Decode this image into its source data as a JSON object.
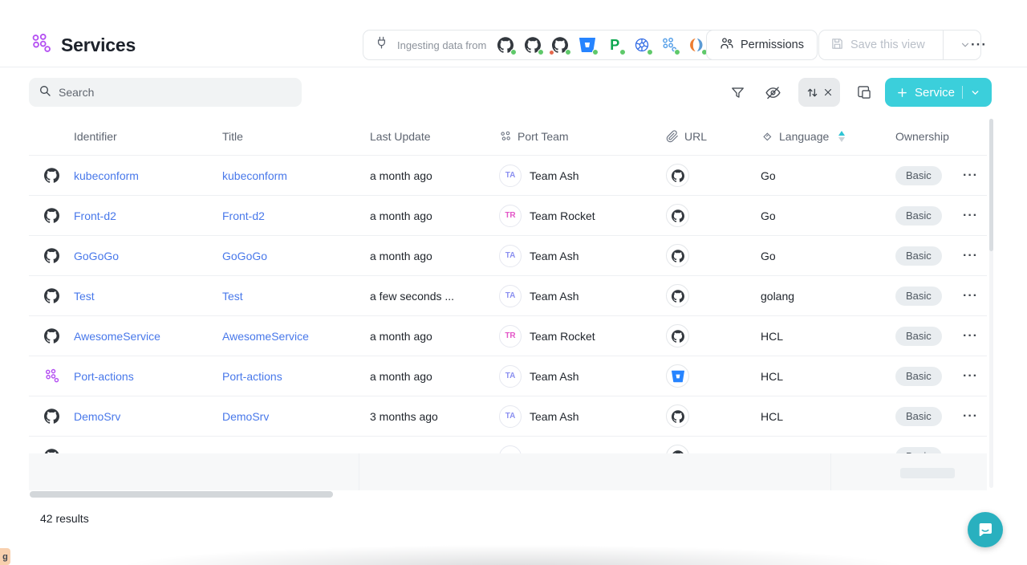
{
  "page": {
    "title": "Services",
    "results_count": "42 results",
    "edge_tag": "g"
  },
  "colors": {
    "accent_teal": "#3bcfdb",
    "link_blue": "#4878ea",
    "status_green": "#5fc96a",
    "alert_red": "#e6694d",
    "avatar_team_ash": "#8b90f0",
    "avatar_team_rocket": "#e357c8"
  },
  "header": {
    "ingest": {
      "label": "Ingesting data from",
      "sources": [
        {
          "icon": "github"
        },
        {
          "icon": "github"
        },
        {
          "icon": "github",
          "alert": true
        },
        {
          "icon": "bitbucket"
        },
        {
          "icon": "pagerduty"
        },
        {
          "icon": "kubernetes"
        },
        {
          "icon": "port-blueprint"
        },
        {
          "icon": "duotone-service"
        },
        {
          "icon": "api"
        }
      ]
    },
    "permissions_label": "Permissions",
    "save_view_label": "Save this view",
    "more_label": "···"
  },
  "toolbar": {
    "search_placeholder": "Search",
    "add_button_label": "Service"
  },
  "table": {
    "columns": [
      "Identifier",
      "Title",
      "Last Update",
      "Port Team",
      "URL",
      "Language",
      "Ownership"
    ],
    "row_menu_label": "···",
    "rows": [
      {
        "icon": "github",
        "identifier": "kubeconform",
        "title": "kubeconform",
        "last_update": "a month ago",
        "team_initials": "TA",
        "team": "Team Ash",
        "team_color": "#8b90f0",
        "url_icon": "github",
        "language": "Go",
        "ownership": "Basic"
      },
      {
        "icon": "github",
        "identifier": "Front-d2",
        "title": "Front-d2",
        "last_update": "a month ago",
        "team_initials": "TR",
        "team": "Team Rocket",
        "team_color": "#e357c8",
        "url_icon": "github",
        "language": "Go",
        "ownership": "Basic"
      },
      {
        "icon": "github",
        "identifier": "GoGoGo",
        "title": "GoGoGo",
        "last_update": "a month ago",
        "team_initials": "TA",
        "team": "Team Ash",
        "team_color": "#8b90f0",
        "url_icon": "github",
        "language": "Go",
        "ownership": "Basic"
      },
      {
        "icon": "github",
        "identifier": "Test",
        "title": "Test",
        "last_update": "a few seconds ...",
        "team_initials": "TA",
        "team": "Team Ash",
        "team_color": "#8b90f0",
        "url_icon": "github",
        "language": "golang",
        "ownership": "Basic"
      },
      {
        "icon": "github",
        "identifier": "AwesomeService",
        "title": "AwesomeService",
        "last_update": "a month ago",
        "team_initials": "TR",
        "team": "Team Rocket",
        "team_color": "#e357c8",
        "url_icon": "github",
        "language": "HCL",
        "ownership": "Basic"
      },
      {
        "icon": "microservices",
        "identifier": "Port-actions",
        "title": "Port-actions",
        "last_update": "a month ago",
        "team_initials": "TA",
        "team": "Team Ash",
        "team_color": "#8b90f0",
        "url_icon": "bitbucket",
        "language": "HCL",
        "ownership": "Basic"
      },
      {
        "icon": "github",
        "identifier": "DemoSrv",
        "title": "DemoSrv",
        "last_update": "3 months ago",
        "team_initials": "TA",
        "team": "Team Ash",
        "team_color": "#8b90f0",
        "url_icon": "github",
        "language": "HCL",
        "ownership": "Basic"
      },
      {
        "icon": "github",
        "identifier": "",
        "title": "",
        "last_update": "",
        "team_initials": "",
        "team": "",
        "team_color": "#8b90f0",
        "url_icon": "github",
        "language": "",
        "ownership": "Basic",
        "partial": true
      }
    ]
  }
}
